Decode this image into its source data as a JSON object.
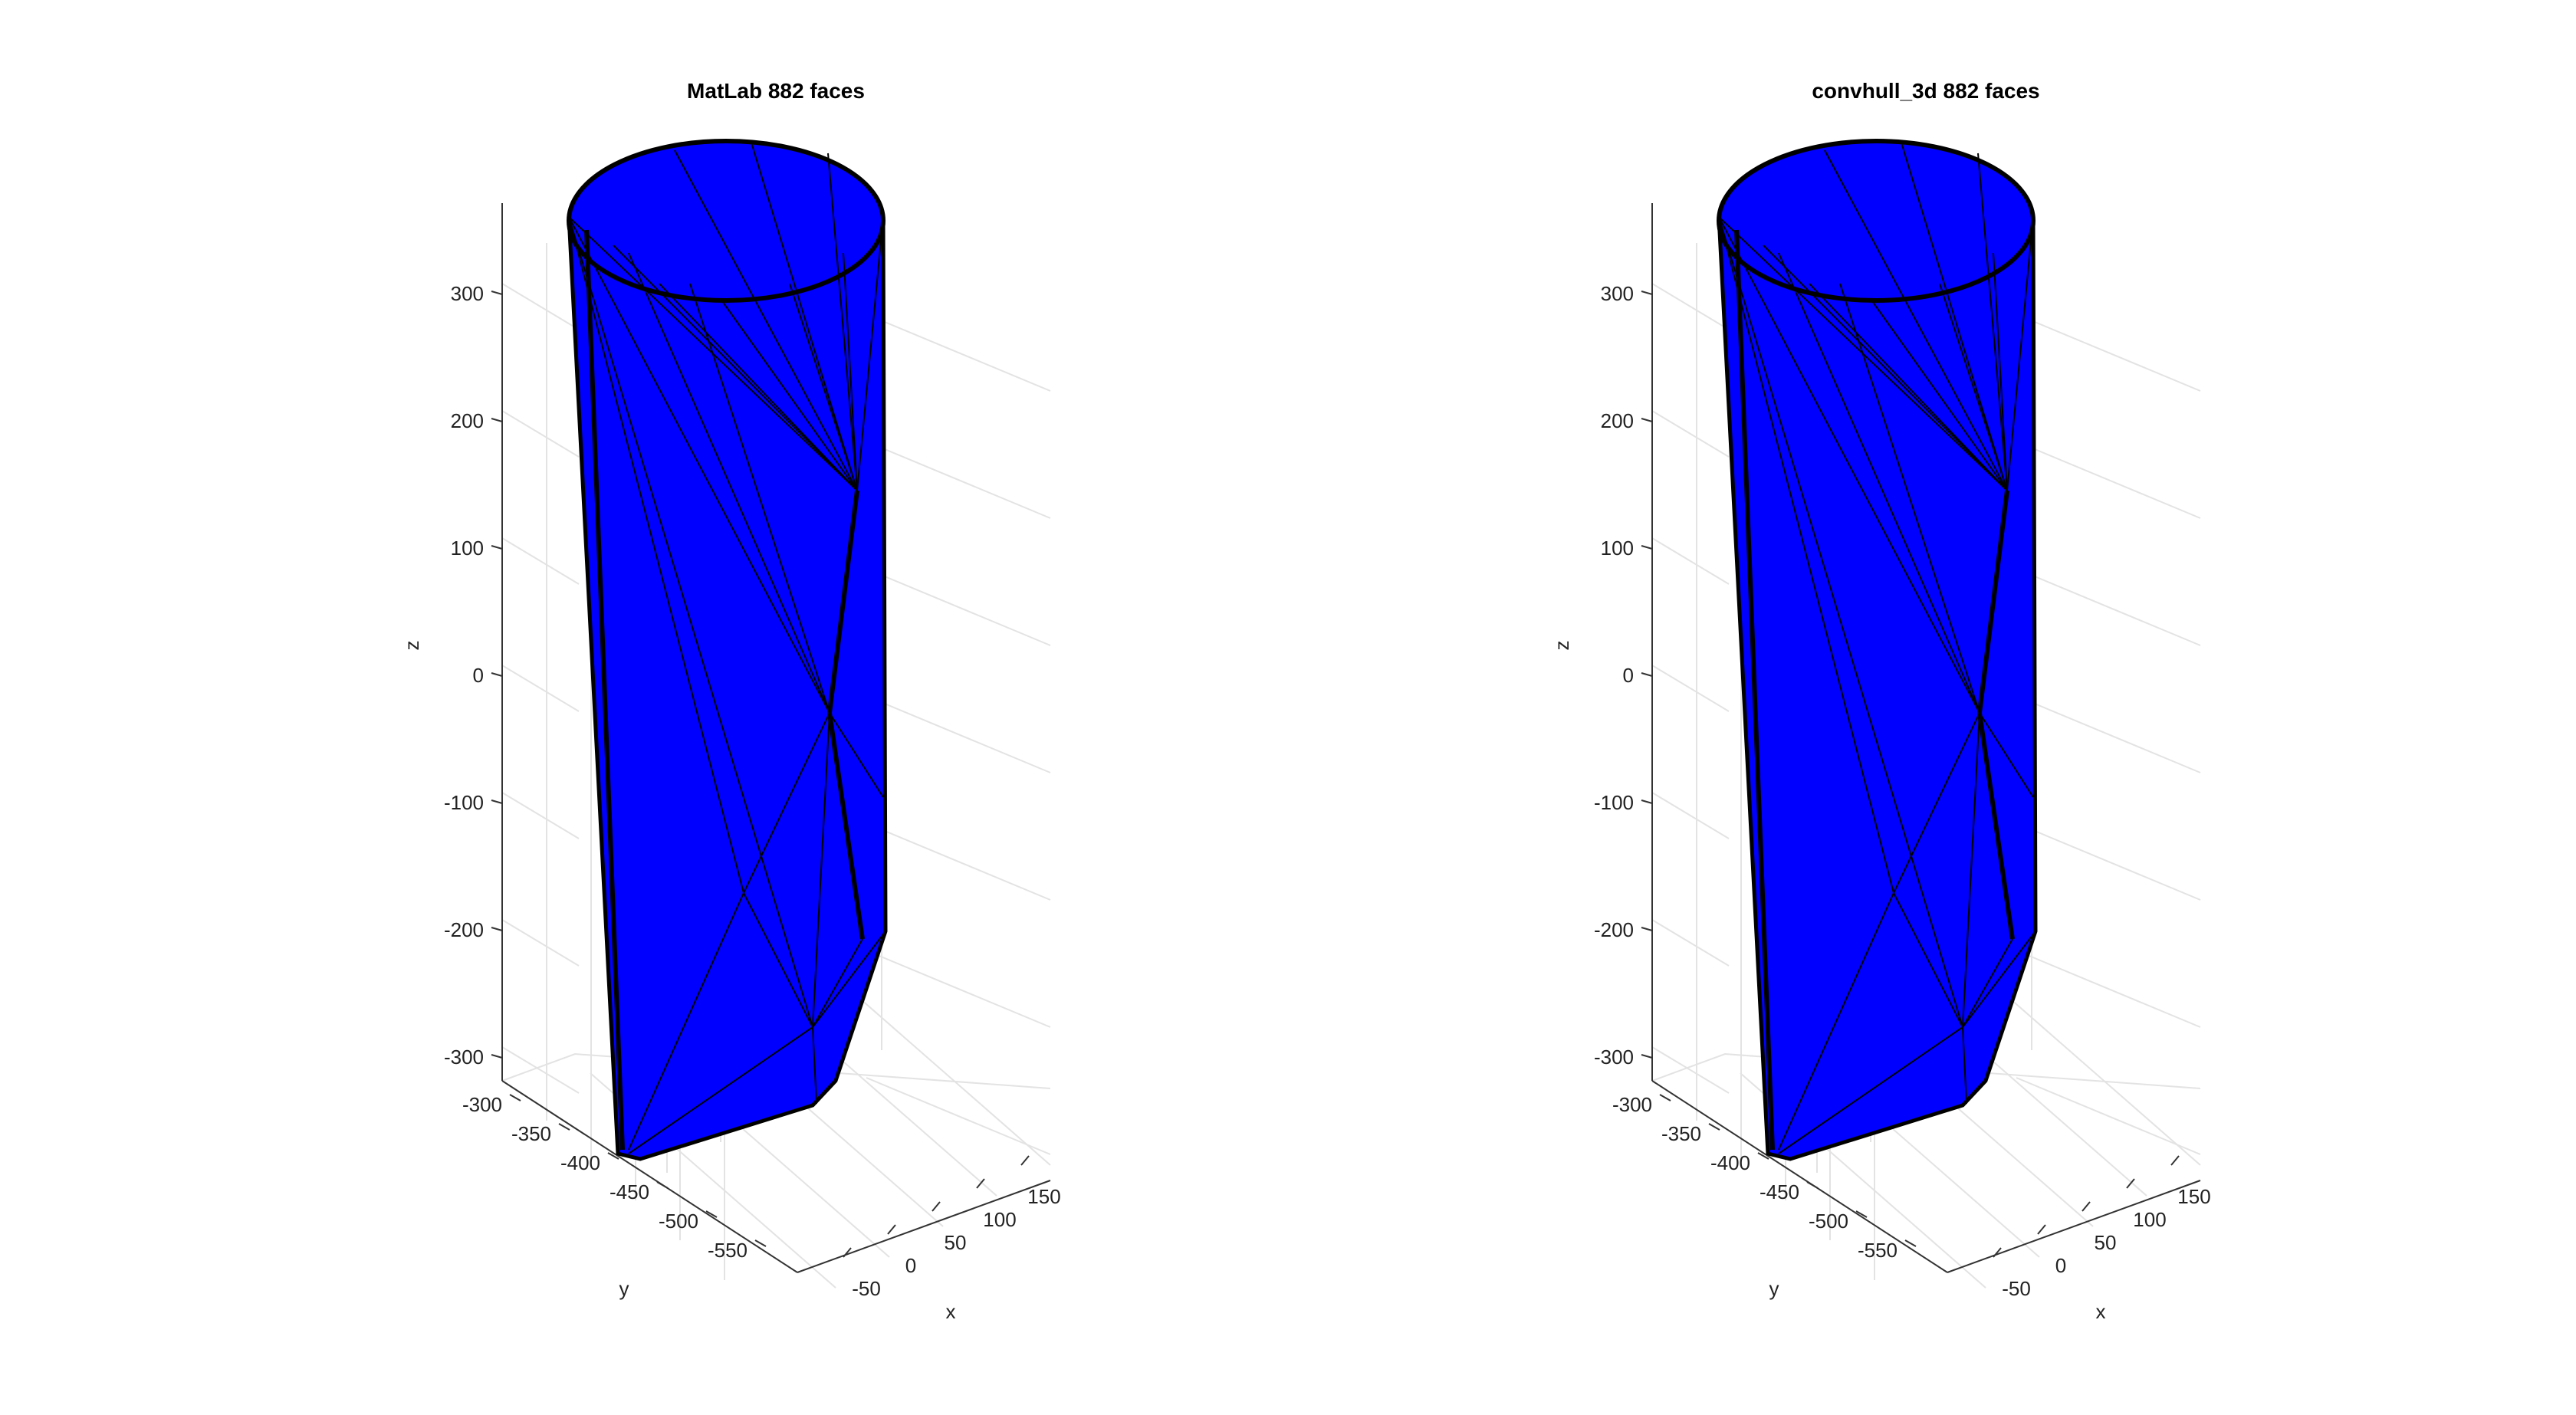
{
  "chart_data": [
    {
      "type": "3d-surface",
      "title": "MatLab 882 faces",
      "xlabel": "x",
      "ylabel": "y",
      "zlabel": "z",
      "x_ticks": [
        -50,
        0,
        50,
        100,
        150
      ],
      "y_ticks": [
        -300,
        -350,
        -400,
        -450,
        -500,
        -550
      ],
      "z_ticks": [
        300,
        200,
        100,
        0,
        -100,
        -200,
        -300
      ],
      "face_color": "#0000ff",
      "edge_color": "#000000",
      "grid": true
    },
    {
      "type": "3d-surface",
      "title": "convhull_3d 882 faces",
      "xlabel": "x",
      "ylabel": "y",
      "zlabel": "z",
      "x_ticks": [
        -50,
        0,
        50,
        100,
        150
      ],
      "y_ticks": [
        -300,
        -350,
        -400,
        -450,
        -500,
        -550
      ],
      "z_ticks": [
        300,
        200,
        100,
        0,
        -100,
        -200,
        -300
      ],
      "face_color": "#0000ff",
      "edge_color": "#000000",
      "grid": true
    }
  ]
}
